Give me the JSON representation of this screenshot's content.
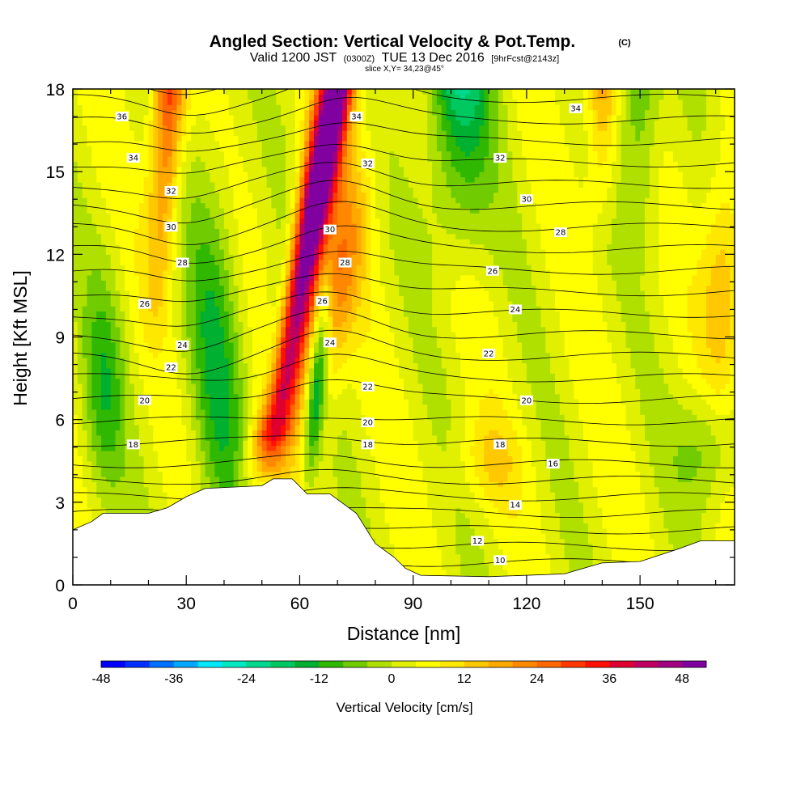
{
  "header": {
    "title": "Angled Section: Vertical Velocity & Pot.Temp.",
    "title_unit": "(C)",
    "valid_prefix": "Valid 1200 JST",
    "valid_z": "(0300Z)",
    "valid_date": "TUE 13 Dec 2016",
    "forecast": "[9hrFcst@2143z]",
    "slice": "slice X,Y= 34,23@45°"
  },
  "chart_data": {
    "type": "heatmap",
    "xlabel": "Distance [nm]",
    "ylabel": "Height [Kft MSL]",
    "xlim": [
      0,
      175
    ],
    "ylim": [
      0,
      18
    ],
    "x_ticks": [
      "0",
      "30",
      "60",
      "90",
      "120",
      "150"
    ],
    "x_tick_values": [
      0,
      30,
      60,
      90,
      120,
      150
    ],
    "y_ticks": [
      "0",
      "3",
      "6",
      "9",
      "12",
      "15",
      "18"
    ],
    "y_tick_values": [
      0,
      3,
      6,
      9,
      12,
      15,
      18
    ],
    "colorbar": {
      "label": "Vertical Velocity [cm/s]",
      "range": [
        -48,
        52
      ],
      "tick_labels": [
        "-48",
        "-36",
        "-24",
        "-12",
        "0",
        "12",
        "24",
        "36",
        "48"
      ],
      "tick_values": [
        -48,
        -36,
        -24,
        -12,
        0,
        12,
        24,
        36,
        48
      ],
      "colors": [
        "#0000ff",
        "#0030ff",
        "#0070ff",
        "#00a8ff",
        "#00e8ff",
        "#00e8c0",
        "#00d890",
        "#00c860",
        "#00b030",
        "#30b800",
        "#70cc00",
        "#b0e000",
        "#e0f000",
        "#ffff00",
        "#ffe800",
        "#ffc800",
        "#ffa800",
        "#ff8800",
        "#ff6800",
        "#ff3800",
        "#ff1000",
        "#e00030",
        "#c00060",
        "#a00080",
        "#8000a0"
      ]
    },
    "terrain_kft": [
      [
        0,
        2.0
      ],
      [
        5,
        2.3
      ],
      [
        8,
        2.6
      ],
      [
        20,
        2.6
      ],
      [
        25,
        2.8
      ],
      [
        30,
        3.2
      ],
      [
        35,
        3.5
      ],
      [
        50,
        3.6
      ],
      [
        53,
        3.85
      ],
      [
        58,
        3.85
      ],
      [
        62,
        3.3
      ],
      [
        68,
        3.3
      ],
      [
        75,
        2.6
      ],
      [
        80,
        1.5
      ],
      [
        85,
        1.0
      ],
      [
        88,
        0.6
      ],
      [
        92,
        0.35
      ],
      [
        110,
        0.3
      ],
      [
        130,
        0.4
      ],
      [
        140,
        0.8
      ],
      [
        150,
        0.85
      ],
      [
        160,
        1.3
      ],
      [
        166,
        1.6
      ],
      [
        175,
        1.6
      ]
    ],
    "theta_labels": [
      {
        "text": "36",
        "x": 13,
        "y": 17.0
      },
      {
        "text": "34",
        "x": 16,
        "y": 15.5
      },
      {
        "text": "32",
        "x": 26,
        "y": 14.3
      },
      {
        "text": "30",
        "x": 26,
        "y": 13.0
      },
      {
        "text": "28",
        "x": 29,
        "y": 11.7
      },
      {
        "text": "26",
        "x": 19,
        "y": 10.2
      },
      {
        "text": "24",
        "x": 29,
        "y": 8.7
      },
      {
        "text": "22",
        "x": 26,
        "y": 7.9
      },
      {
        "text": "20",
        "x": 19,
        "y": 6.7
      },
      {
        "text": "18",
        "x": 16,
        "y": 5.1
      },
      {
        "text": "34",
        "x": 75,
        "y": 17.0
      },
      {
        "text": "32",
        "x": 78,
        "y": 15.3
      },
      {
        "text": "30",
        "x": 68,
        "y": 12.9
      },
      {
        "text": "28",
        "x": 72,
        "y": 11.7
      },
      {
        "text": "26",
        "x": 66,
        "y": 10.3
      },
      {
        "text": "24",
        "x": 68,
        "y": 8.8
      },
      {
        "text": "22",
        "x": 78,
        "y": 7.2
      },
      {
        "text": "20",
        "x": 78,
        "y": 5.9
      },
      {
        "text": "18",
        "x": 78,
        "y": 5.1
      },
      {
        "text": "34",
        "x": 133,
        "y": 17.3
      },
      {
        "text": "32",
        "x": 113,
        "y": 15.5
      },
      {
        "text": "30",
        "x": 120,
        "y": 14.0
      },
      {
        "text": "28",
        "x": 129,
        "y": 12.8
      },
      {
        "text": "26",
        "x": 111,
        "y": 11.4
      },
      {
        "text": "24",
        "x": 117,
        "y": 10.0
      },
      {
        "text": "22",
        "x": 110,
        "y": 8.4
      },
      {
        "text": "20",
        "x": 120,
        "y": 6.7
      },
      {
        "text": "18",
        "x": 113,
        "y": 5.1
      },
      {
        "text": "16",
        "x": 127,
        "y": 4.4
      },
      {
        "text": "14",
        "x": 117,
        "y": 2.9
      },
      {
        "text": "12",
        "x": 107,
        "y": 1.6
      },
      {
        "text": "10",
        "x": 113,
        "y": 0.9
      }
    ]
  }
}
